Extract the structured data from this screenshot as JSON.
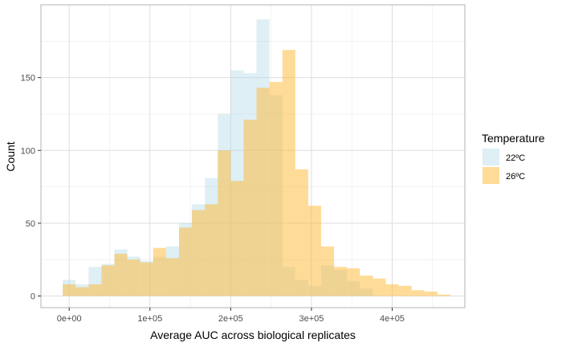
{
  "chart_data": {
    "type": "bar",
    "subtype": "overlapping-histogram",
    "xlabel": "Average AUC across biological replicates",
    "ylabel": "Count",
    "xlim": [
      -35000,
      490000
    ],
    "ylim": [
      -8,
      200
    ],
    "x_ticks": [
      {
        "value": 0,
        "label": "0e+00"
      },
      {
        "value": 100000,
        "label": "1e+05"
      },
      {
        "value": 200000,
        "label": "2e+05"
      },
      {
        "value": 300000,
        "label": "3e+05"
      },
      {
        "value": 400000,
        "label": "4e+05"
      }
    ],
    "y_ticks": [
      {
        "value": 0,
        "label": "0"
      },
      {
        "value": 50,
        "label": "50"
      },
      {
        "value": 100,
        "label": "100"
      },
      {
        "value": 150,
        "label": "150"
      }
    ],
    "grid": true,
    "bin_width": 16000,
    "bin_centers": [
      0,
      16000,
      32000,
      48000,
      64000,
      80000,
      96000,
      112000,
      128000,
      144000,
      160000,
      176000,
      192000,
      208000,
      224000,
      240000,
      256000,
      272000,
      288000,
      304000,
      320000,
      336000,
      352000,
      368000,
      384000,
      400000,
      416000,
      432000,
      448000,
      464000
    ],
    "legend": {
      "title": "Temperature",
      "position": "right"
    },
    "series": [
      {
        "name": "22ºC",
        "color": "#add8e6",
        "opacity": 0.4,
        "values": [
          11,
          8,
          20,
          22,
          32,
          27,
          24,
          27,
          34,
          50,
          63,
          81,
          125,
          155,
          153,
          190,
          138,
          20,
          11,
          7,
          21,
          18,
          10,
          5,
          0,
          0,
          0,
          0,
          0,
          0
        ]
      },
      {
        "name": "26ºC",
        "color": "#ffb732",
        "opacity": 0.5,
        "values": [
          8,
          6,
          8,
          21,
          29,
          25,
          23,
          33,
          26,
          47,
          59,
          63,
          100,
          79,
          121,
          143,
          147,
          169,
          87,
          62,
          34,
          20,
          19,
          14,
          12,
          8,
          7,
          4,
          3,
          1
        ]
      }
    ]
  }
}
